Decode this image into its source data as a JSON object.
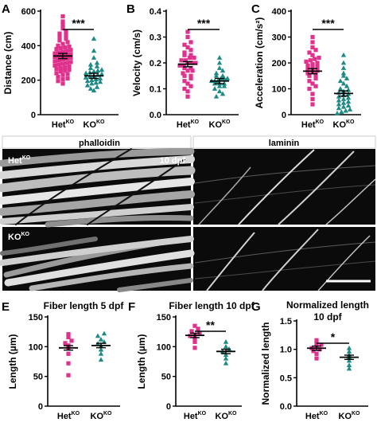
{
  "colors": {
    "het": "#e0318c",
    "ko": "#1d8a86",
    "micro_bg": "#0b0b0b"
  },
  "panel_d": {
    "letter": "D",
    "left_header": "phalloidin",
    "right_header": "laminin",
    "row1_label": "Het",
    "row1_sup": "KO",
    "row2_label": "KO",
    "row2_sup": "KO",
    "time_label": "10 dpf"
  },
  "chart_data": [
    {
      "letter": "A",
      "type": "scatter",
      "title": "",
      "ylabel": "Distance (cm)",
      "ylim": [
        0,
        600
      ],
      "yticks": [
        0,
        200,
        400,
        600
      ],
      "tick_labels": [
        "0",
        "200",
        "400",
        "600"
      ],
      "categories": [
        "Het",
        "KO"
      ],
      "category_sup": [
        "KO",
        "KO"
      ],
      "means": [
        340,
        225
      ],
      "significance": "***",
      "series": [
        {
          "marker": "square",
          "color": "#e0318c",
          "values": [
            180,
            195,
            205,
            210,
            220,
            230,
            235,
            240,
            250,
            255,
            260,
            265,
            270,
            275,
            280,
            285,
            290,
            295,
            300,
            305,
            310,
            315,
            320,
            325,
            330,
            335,
            340,
            340,
            345,
            350,
            355,
            360,
            365,
            370,
            375,
            380,
            385,
            390,
            395,
            400,
            410,
            420,
            430,
            440,
            450,
            460,
            470,
            480,
            500,
            520,
            540,
            570
          ]
        },
        {
          "marker": "triangle",
          "color": "#1d8a86",
          "values": [
            140,
            150,
            160,
            170,
            180,
            185,
            190,
            195,
            200,
            205,
            210,
            215,
            220,
            225,
            230,
            235,
            240,
            245,
            250,
            255,
            260,
            270,
            280,
            290,
            300,
            330,
            370,
            440
          ]
        }
      ]
    },
    {
      "letter": "B",
      "type": "scatter",
      "title": "",
      "ylabel": "Velocity (cm/s)",
      "ylim": [
        0,
        0.4
      ],
      "yticks": [
        0,
        0.1,
        0.2,
        0.3,
        0.4
      ],
      "tick_labels": [
        "0.0",
        "0.1",
        "0.2",
        "0.3",
        "0.4"
      ],
      "categories": [
        "Het",
        "KO"
      ],
      "category_sup": [
        "KO",
        "KO"
      ],
      "means": [
        0.195,
        0.13
      ],
      "significance": "***",
      "series": [
        {
          "marker": "square",
          "color": "#e0318c",
          "values": [
            0.07,
            0.09,
            0.1,
            0.11,
            0.12,
            0.13,
            0.14,
            0.15,
            0.15,
            0.16,
            0.17,
            0.17,
            0.18,
            0.18,
            0.19,
            0.19,
            0.2,
            0.2,
            0.2,
            0.21,
            0.21,
            0.22,
            0.22,
            0.23,
            0.23,
            0.24,
            0.25,
            0.26,
            0.27,
            0.28,
            0.3,
            0.32
          ]
        },
        {
          "marker": "triangle",
          "color": "#1d8a86",
          "values": [
            0.07,
            0.08,
            0.09,
            0.1,
            0.11,
            0.11,
            0.12,
            0.12,
            0.12,
            0.13,
            0.13,
            0.13,
            0.14,
            0.14,
            0.14,
            0.15,
            0.15,
            0.16,
            0.17,
            0.18,
            0.2,
            0.22
          ]
        }
      ]
    },
    {
      "letter": "C",
      "type": "scatter",
      "title": "",
      "ylabel": "Acceleration (cm/s²)",
      "ylim": [
        0,
        400
      ],
      "yticks": [
        0,
        100,
        200,
        300,
        400
      ],
      "tick_labels": [
        "0",
        "100",
        "200",
        "300",
        "400"
      ],
      "categories": [
        "Het",
        "KO"
      ],
      "category_sup": [
        "KO",
        "KO"
      ],
      "means": [
        168,
        82
      ],
      "significance": "***",
      "series": [
        {
          "marker": "square",
          "color": "#e0318c",
          "values": [
            40,
            60,
            80,
            100,
            110,
            120,
            130,
            140,
            150,
            155,
            160,
            165,
            170,
            175,
            180,
            185,
            190,
            195,
            200,
            205,
            210,
            215,
            220,
            230,
            240,
            250,
            260,
            280,
            300
          ]
        },
        {
          "marker": "triangle",
          "color": "#1d8a86",
          "values": [
            5,
            10,
            15,
            20,
            25,
            30,
            35,
            40,
            45,
            50,
            55,
            60,
            65,
            70,
            75,
            80,
            85,
            90,
            95,
            100,
            110,
            120,
            130,
            140,
            150,
            160,
            180,
            200,
            230
          ]
        }
      ]
    },
    {
      "letter": "E",
      "type": "scatter",
      "title": "Fiber length 5 dpf",
      "ylabel": "Length (µm)",
      "ylim": [
        0,
        150
      ],
      "yticks": [
        0,
        50,
        100,
        150
      ],
      "tick_labels": [
        "0",
        "50",
        "100",
        "150"
      ],
      "categories": [
        "Het",
        "KO"
      ],
      "category_sup": [
        "KO",
        "KO"
      ],
      "means": [
        98,
        102
      ],
      "significance": "",
      "series": [
        {
          "marker": "square",
          "color": "#e0318c",
          "values": [
            52,
            72,
            88,
            97,
            102,
            106,
            110,
            116,
            121
          ]
        },
        {
          "marker": "triangle",
          "color": "#1d8a86",
          "values": [
            78,
            88,
            95,
            101,
            105,
            108,
            112,
            118,
            122
          ]
        }
      ]
    },
    {
      "letter": "F",
      "type": "scatter",
      "title": "Fiber length 10 dpf",
      "ylabel": "Length (µm)",
      "ylim": [
        0,
        150
      ],
      "yticks": [
        0,
        50,
        100,
        150
      ],
      "tick_labels": [
        "0",
        "50",
        "100",
        "150"
      ],
      "categories": [
        "Het",
        "KO"
      ],
      "category_sup": [
        "KO",
        "KO"
      ],
      "means": [
        119,
        92
      ],
      "significance": "**",
      "series": [
        {
          "marker": "square",
          "color": "#e0318c",
          "values": [
            98,
            108,
            113,
            118,
            120,
            122,
            126,
            130,
            135
          ]
        },
        {
          "marker": "triangle",
          "color": "#1d8a86",
          "values": [
            72,
            80,
            86,
            92,
            96,
            100,
            108
          ]
        }
      ]
    },
    {
      "letter": "G",
      "type": "scatter",
      "title": "Normalized length",
      "subtitle": "10 dpf",
      "ylabel": "Normalized length",
      "ylim": [
        0,
        1.5
      ],
      "yticks": [
        0,
        0.5,
        1.0,
        1.5
      ],
      "tick_labels": [
        "0.0",
        "0.5",
        "1.0",
        "1.5"
      ],
      "categories": [
        "Het",
        "KO"
      ],
      "category_sup": [
        "KO",
        "KO"
      ],
      "means": [
        1.02,
        0.86
      ],
      "significance": "*",
      "series": [
        {
          "marker": "square",
          "color": "#e0318c",
          "values": [
            0.84,
            0.92,
            0.97,
            1.0,
            1.02,
            1.05,
            1.08,
            1.1,
            1.16
          ]
        },
        {
          "marker": "triangle",
          "color": "#1d8a86",
          "values": [
            0.66,
            0.72,
            0.8,
            0.86,
            0.9,
            0.96,
            1.02
          ]
        }
      ]
    }
  ]
}
